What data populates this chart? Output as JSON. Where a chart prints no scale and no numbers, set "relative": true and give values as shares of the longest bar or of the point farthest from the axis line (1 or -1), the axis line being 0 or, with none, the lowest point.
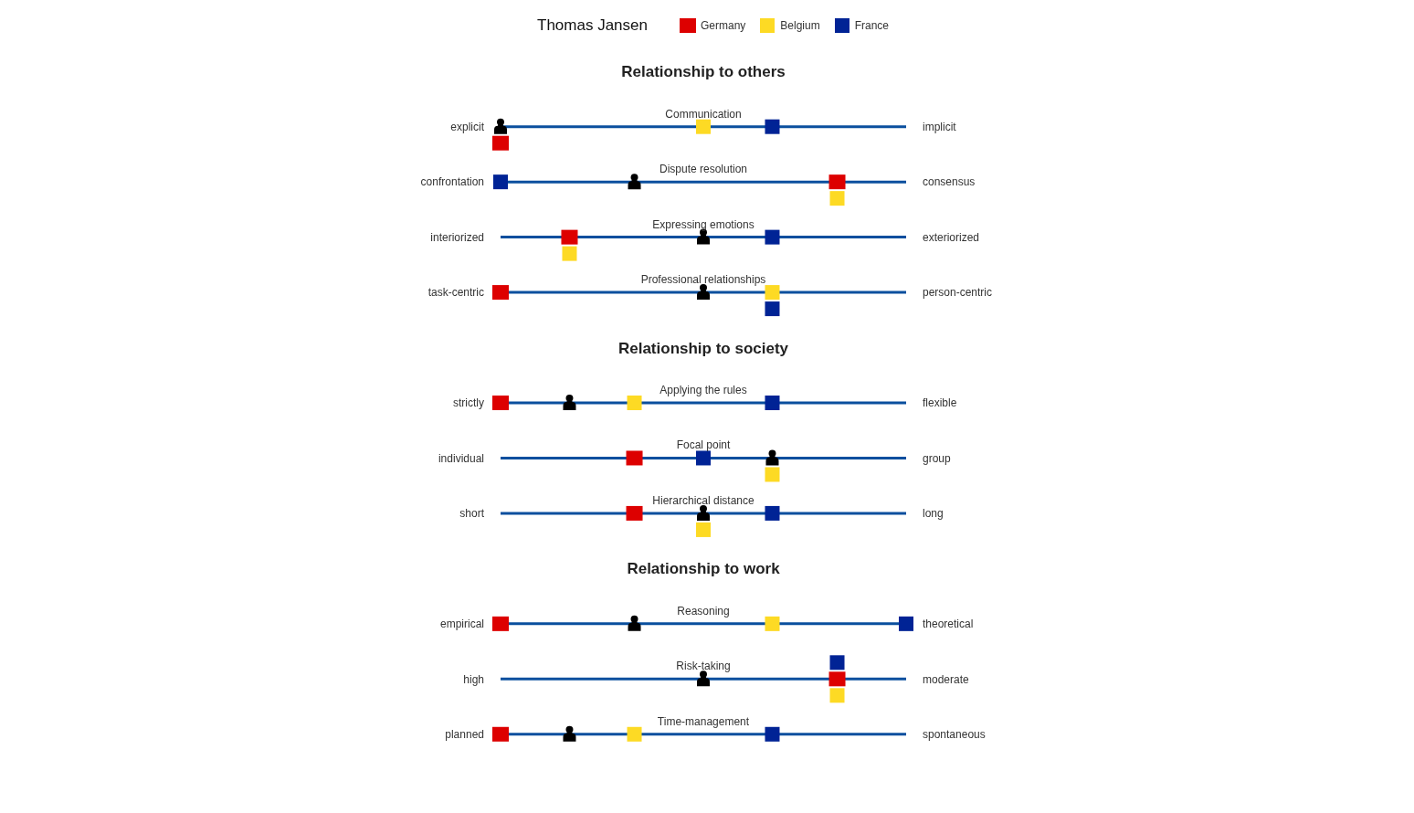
{
  "chart_data": {
    "type": "scatter",
    "orientation": "horizontal",
    "relative": true,
    "grid": "y",
    "legend": "top",
    "legend_title": "Thomas Jansen",
    "categories": [
      null,
      "explicit",
      "confrontation",
      "interiorized",
      "task-centric",
      null,
      "strictly",
      "individual",
      "short",
      null,
      "empirical",
      "high",
      "planned"
    ],
    "y2_categories": [
      null,
      "implicit",
      "consensus",
      "exteriorized",
      "person-centric",
      null,
      "flexible",
      "group",
      "long",
      null,
      "theoretical",
      "moderate",
      "spontaneous"
    ],
    "annotations": [
      "Relationship to others",
      "Relationship to society",
      "Relationship to work"
    ],
    "ref_lines": [
      {
        "axis": "y",
        "label": "Communication",
        "color": "#0a4f9e"
      },
      {
        "axis": "y",
        "label": "Dispute resolution",
        "color": "#0a4f9e"
      },
      {
        "axis": "y",
        "label": "Expressing emotions",
        "color": "#0a4f9e"
      },
      {
        "axis": "y",
        "label": "Professional relationships",
        "color": "#0a4f9e"
      },
      {
        "axis": "y",
        "label": "Applying the rules",
        "color": "#0a4f9e"
      },
      {
        "axis": "y",
        "label": "Focal point",
        "color": "#0a4f9e"
      },
      {
        "axis": "y",
        "label": "Hierarchical distance",
        "color": "#0a4f9e"
      },
      {
        "axis": "y",
        "label": "Reasoning",
        "color": "#0a4f9e"
      },
      {
        "axis": "y",
        "label": "Risk-taking",
        "color": "#0a4f9e"
      },
      {
        "axis": "y",
        "label": "Time-management",
        "color": "#0a4f9e"
      }
    ],
    "series": [
      {
        "color": "#000000",
        "values": [
          null,
          0,
          0.33,
          0.5,
          0.5,
          null,
          0.17,
          0.67,
          0.5,
          null,
          0.33,
          0.5,
          0.17
        ]
      },
      {
        "name": "Germany",
        "color": "#dd0000",
        "values": [
          null,
          0,
          0.83,
          0.17,
          0,
          null,
          0,
          0.33,
          0.33,
          null,
          0,
          0.83,
          0
        ]
      },
      {
        "name": "Belgium",
        "color": "#fdda24",
        "values": [
          null,
          0.5,
          0.83,
          0.17,
          0.67,
          null,
          0.33,
          0.67,
          0.5,
          null,
          0.67,
          0.83,
          0.33
        ]
      },
      {
        "name": "France",
        "color": "#002395",
        "values": [
          null,
          0.67,
          0,
          0.67,
          0.67,
          null,
          0.67,
          0.5,
          0.67,
          null,
          1,
          0.83,
          0.67
        ]
      }
    ]
  }
}
